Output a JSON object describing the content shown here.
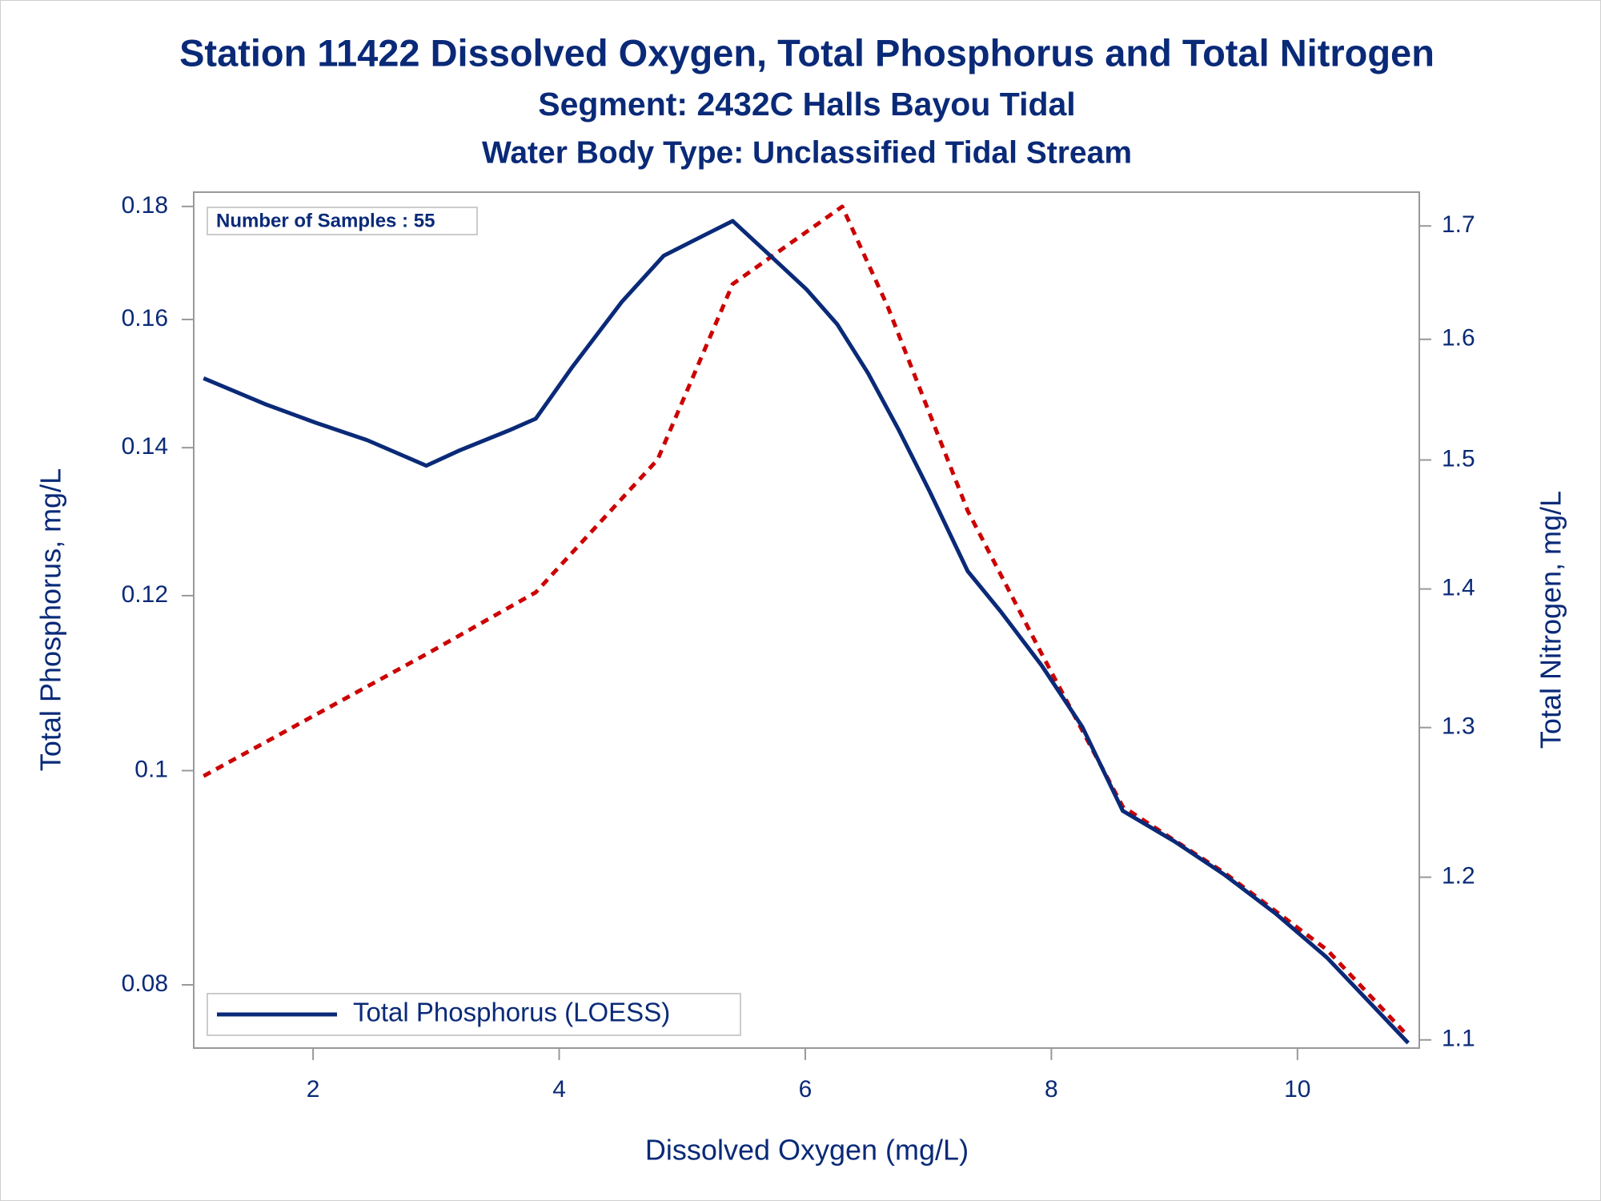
{
  "chart_data": {
    "type": "line",
    "title": "Station 11422  Dissolved Oxygen, Total Phosphorus and Total Nitrogen",
    "subtitle": "Segment: 2432C  Halls Bayou Tidal",
    "subtitle2": "Water Body Type: Unclassified Tidal Stream",
    "annotation": "Number of Samples : 55",
    "x_label": "Dissolved Oxygen (mg/L)",
    "y_label": "Total Phosphorus, mg/L",
    "y2_label": "Total Nitrogen, mg/L",
    "xlim": [
      1.03,
      10.99
    ],
    "xticks": [
      2,
      4,
      6,
      8,
      10
    ],
    "ylim": [
      0.0749,
      0.1827
    ],
    "yticks": [
      0.08,
      0.1,
      0.12,
      0.14,
      0.16,
      0.18
    ],
    "ylog": true,
    "y2lim": [
      1.0952,
      1.731
    ],
    "y2ticks": [
      1.1,
      1.2,
      1.3,
      1.4,
      1.5,
      1.6,
      1.7
    ],
    "y2log": true,
    "legend": "bottom-left",
    "series": [
      {
        "name": "Total Phosphorus (LOESS)",
        "color": "#0a2a78",
        "dash": false,
        "x": [
          1.11,
          1.61,
          2.02,
          2.44,
          2.92,
          3.19,
          3.6,
          3.81,
          4.1,
          4.51,
          4.85,
          5.18,
          5.41,
          5.76,
          6.01,
          6.26,
          6.51,
          6.76,
          7.01,
          7.32,
          7.59,
          7.92,
          8.25,
          8.58,
          9.0,
          9.41,
          9.83,
          10.24,
          10.9
        ],
        "values": [
          0.1505,
          0.1465,
          0.1437,
          0.1411,
          0.1374,
          0.1396,
          0.1426,
          0.1443,
          0.1521,
          0.163,
          0.171,
          0.1747,
          0.1773,
          0.1701,
          0.1651,
          0.1592,
          0.1513,
          0.1426,
          0.1338,
          0.1231,
          0.118,
          0.1116,
          0.1047,
          0.0959,
          0.0929,
          0.0897,
          0.0861,
          0.0823,
          0.0753
        ]
      },
      {
        "color": "#cc0000",
        "dash": true,
        "axis": "y2",
        "x": [
          1.11,
          2.02,
          2.93,
          3.81,
          4.8,
          5.41,
          6.3,
          6.67,
          7.32,
          7.92,
          8.58,
          9.41,
          10.24,
          10.9
        ],
        "values": [
          1.2667,
          1.3089,
          1.3525,
          1.3975,
          1.5003,
          1.648,
          1.7177,
          1.6282,
          1.4598,
          1.3525,
          1.2461,
          1.2026,
          1.1543,
          1.1021
        ]
      }
    ]
  }
}
